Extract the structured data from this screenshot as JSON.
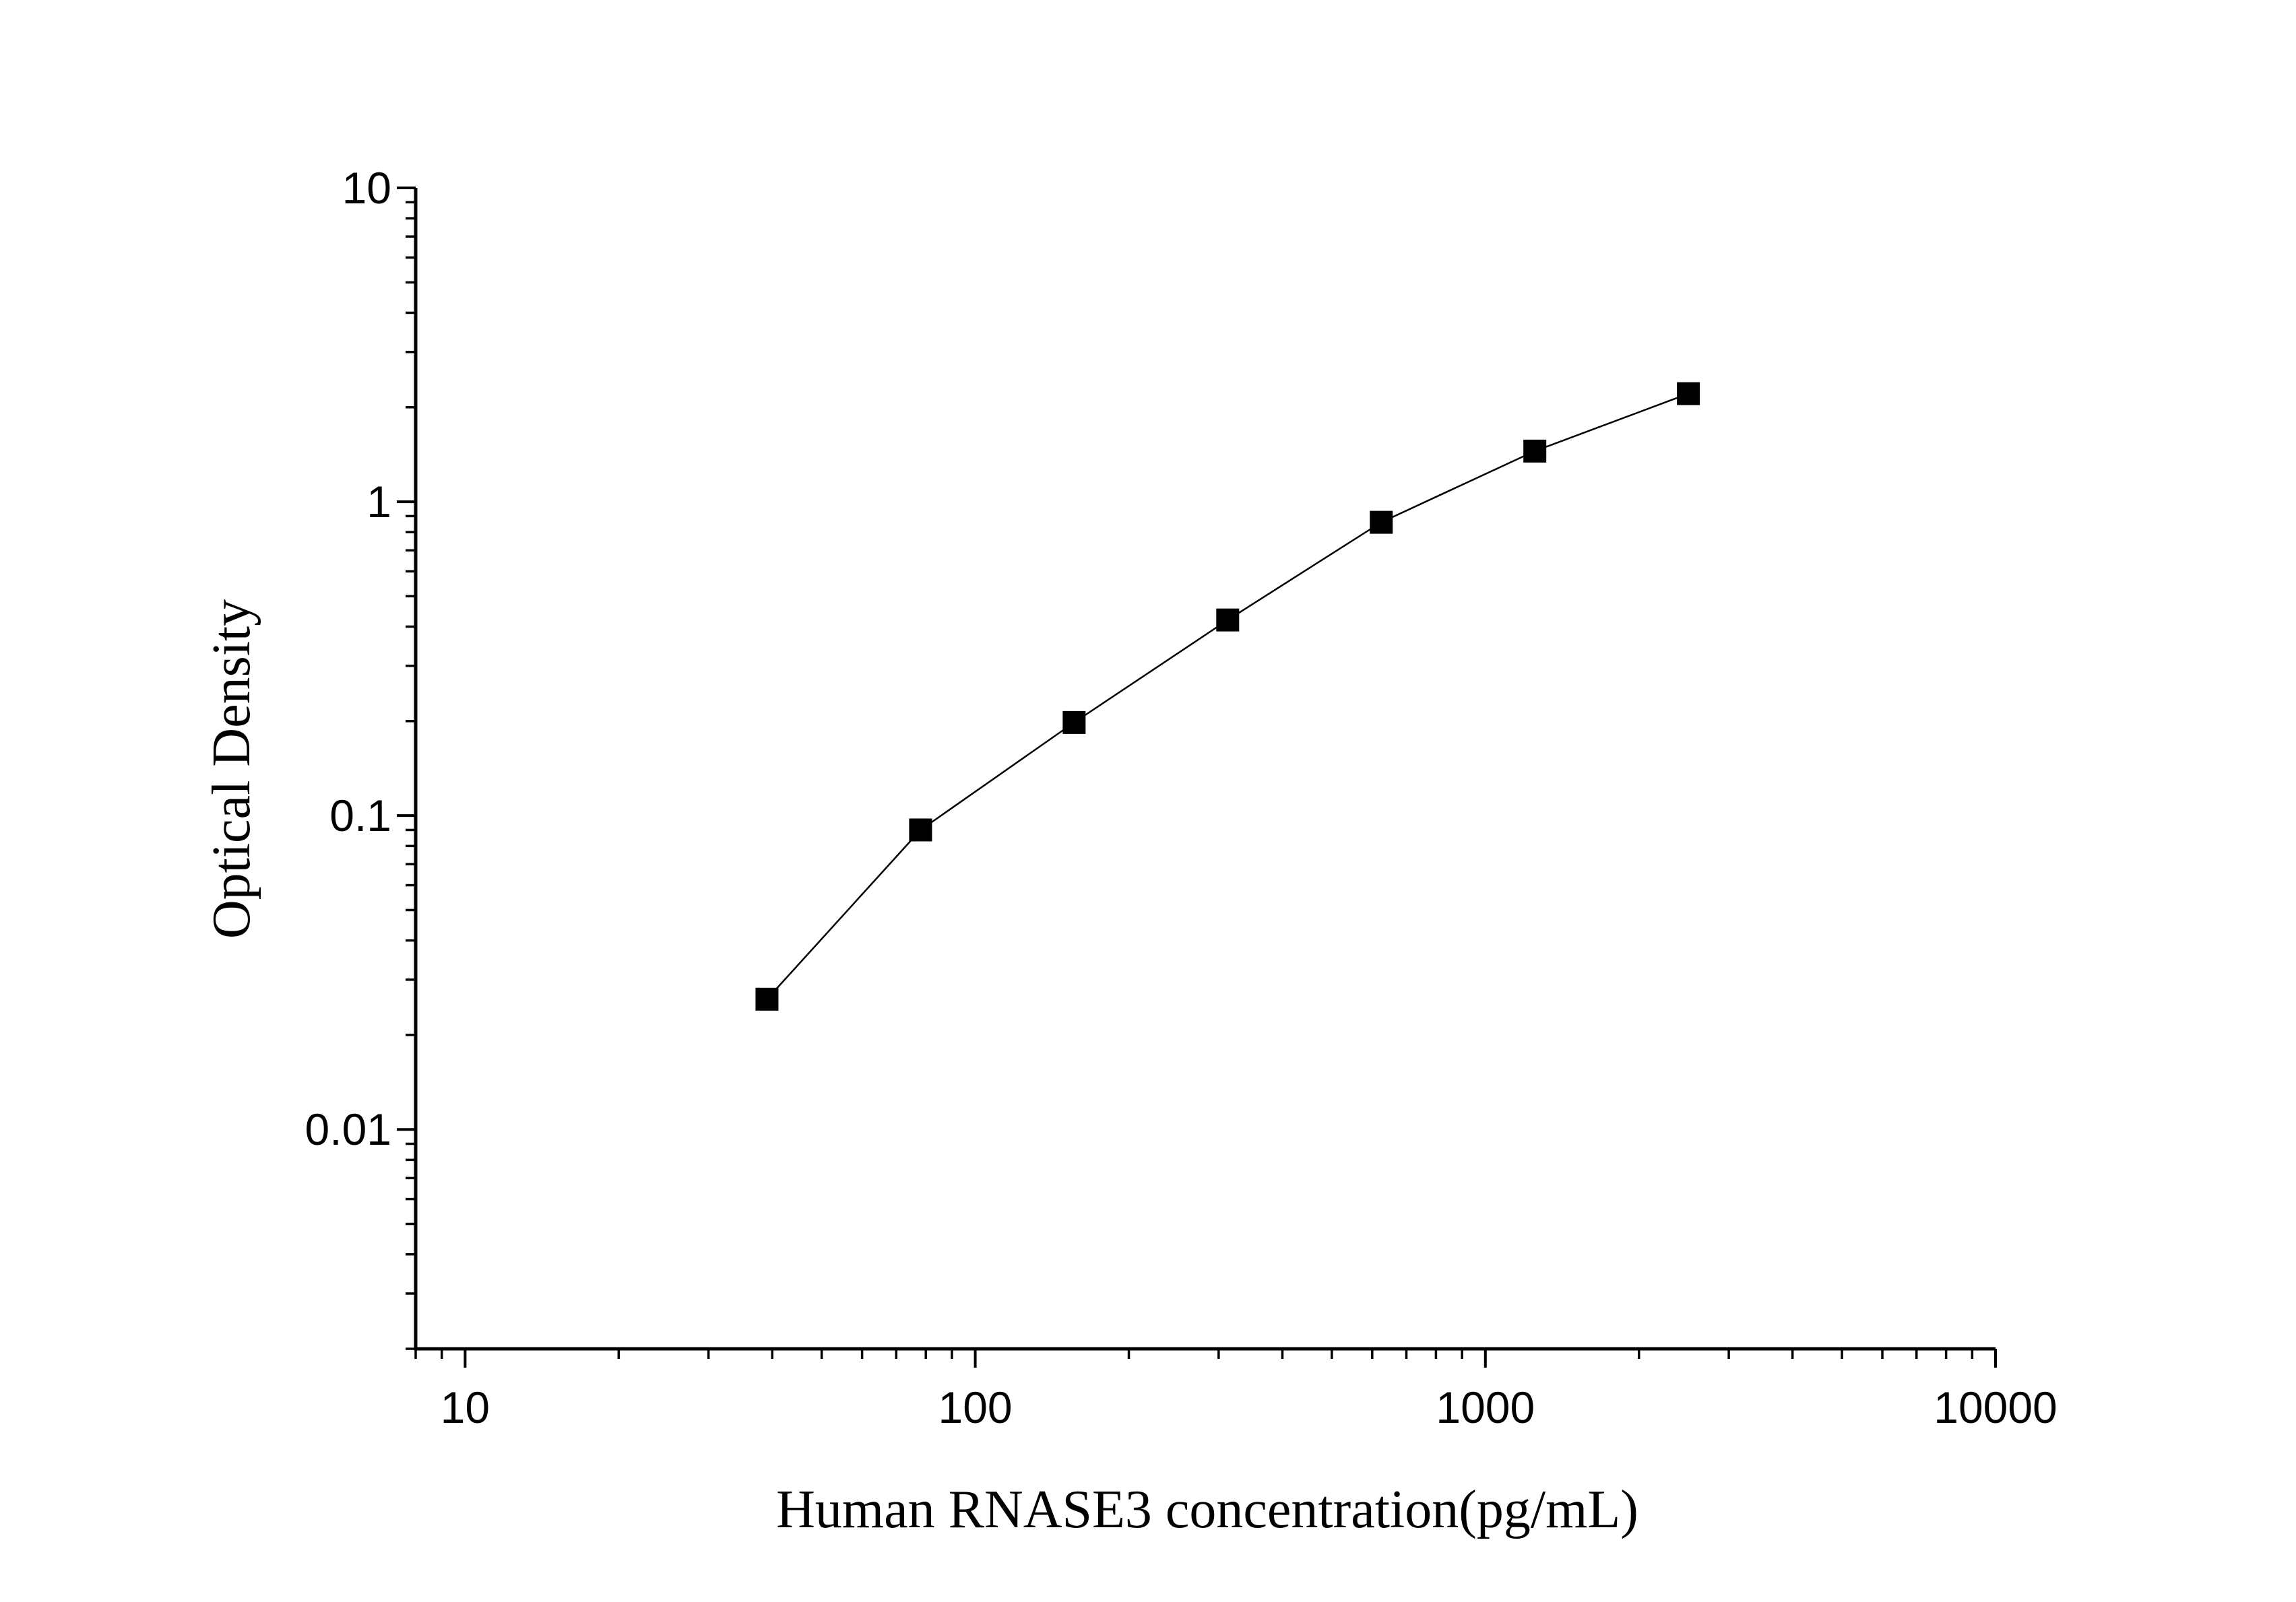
{
  "chart_data": {
    "type": "line",
    "x_label": "Human RNASE3 concentration(pg/mL)",
    "y_label": "Optical Density",
    "x_scale": "log",
    "y_scale": "log",
    "xlim": [
      8,
      10000
    ],
    "ylim": [
      0.002,
      10
    ],
    "xticks": [
      10,
      100,
      1000,
      10000
    ],
    "yticks": [
      0.01,
      0.1,
      1,
      10
    ],
    "series": [
      {
        "color": "#000000",
        "x": [
          39.06,
          78.13,
          156.25,
          312.5,
          625,
          1250,
          2500
        ],
        "values": [
          0.026,
          0.09,
          0.198,
          0.42,
          0.86,
          1.45,
          2.21
        ]
      }
    ]
  }
}
